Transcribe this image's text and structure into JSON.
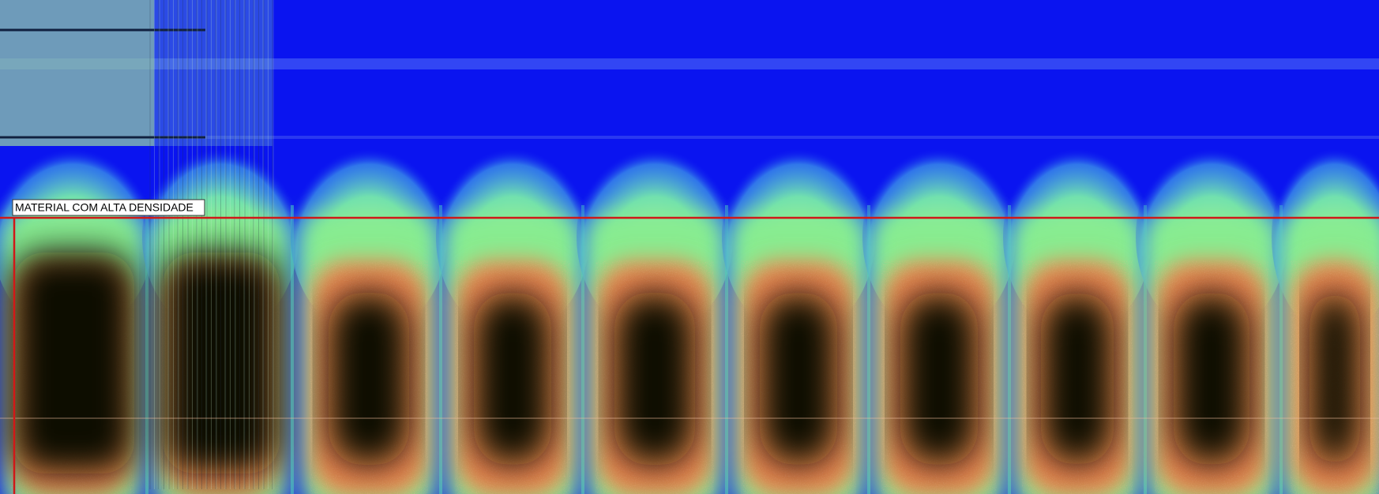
{
  "annotation": {
    "label": "MATERIAL COM ALTA DENSIDADE"
  }
}
